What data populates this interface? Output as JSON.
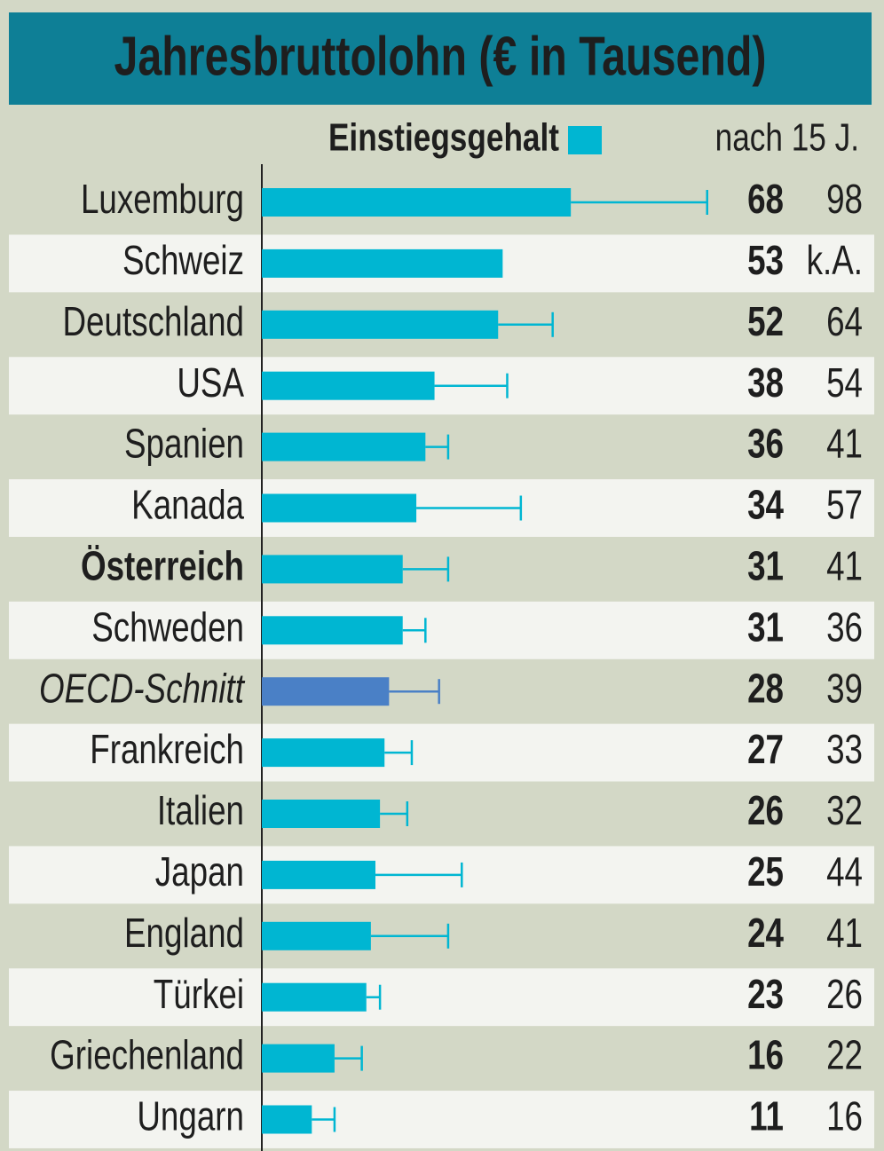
{
  "chart_data": {
    "type": "bar",
    "orientation": "horizontal",
    "title": "Jahresbruttolohn (€ in Tausend)",
    "categories": [
      "Luxemburg",
      "Schweiz",
      "Deutschland",
      "USA",
      "Spanien",
      "Kanada",
      "Österreich",
      "Schweden",
      "OECD-Schnitt",
      "Frankreich",
      "Italien",
      "Japan",
      "England",
      "Türkei",
      "Griechenland",
      "Ungarn"
    ],
    "series": [
      {
        "name": "Einstiegsgehalt",
        "color": "#00b6d2",
        "colors": [
          "#00b6d2",
          "#00b6d2",
          "#00b6d2",
          "#00b6d2",
          "#00b6d2",
          "#00b6d2",
          "#00b6d2",
          "#00b6d2",
          "#4a80c6",
          "#00b6d2",
          "#00b6d2",
          "#00b6d2",
          "#00b6d2",
          "#00b6d2",
          "#00b6d2",
          "#00b6d2"
        ],
        "values": [
          68,
          53,
          52,
          38,
          36,
          34,
          31,
          31,
          28,
          27,
          26,
          25,
          24,
          23,
          16,
          11
        ]
      },
      {
        "name": "nach 15 J.",
        "color": "#00b6d2",
        "values": [
          98,
          null,
          64,
          54,
          41,
          57,
          41,
          36,
          39,
          33,
          32,
          44,
          41,
          26,
          22,
          16
        ],
        "value_labels": [
          "98",
          "k.A.",
          "64",
          "54",
          "41",
          "57",
          "41",
          "36",
          "39",
          "33",
          "32",
          "44",
          "41",
          "26",
          "22",
          "16"
        ]
      }
    ],
    "xlim": [
      0,
      100
    ]
  }
}
